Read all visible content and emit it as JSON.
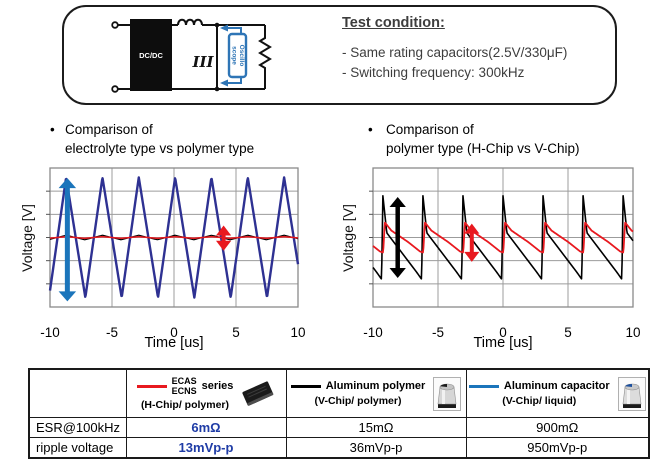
{
  "test_box": {
    "title": "Test condition:",
    "conditions": [
      "- Same rating capacitors(2.5V/330μF)",
      "- Switching frequency: 300kHz"
    ],
    "circuit": {
      "block_label": "DC/DC",
      "capacitor_marks": "III",
      "scope_label_line1": "Oscillo",
      "scope_label_line2": "scope"
    }
  },
  "chart_data": [
    {
      "type": "line",
      "bullet": "•",
      "title_line1": "Comparison of",
      "title_line2": "electrolyte type vs polymer type",
      "xlabel": "Time [us]",
      "ylabel": "Voltage [V]",
      "xlim": [
        -10,
        10
      ],
      "xticks": [
        -10,
        -5,
        0,
        5,
        10
      ],
      "ylim_mv": [
        -550,
        550
      ],
      "grid_rows": 6,
      "grid_on": true,
      "legend": "none (legend given in table below)",
      "series": [
        {
          "name": "Aluminum capacitor (V-Chip/ liquid)",
          "color": "#2e3192",
          "stroke_width": 2.4,
          "waveform": "triangle",
          "amplitude_mvpp": 950,
          "period_us": 2.93,
          "peak_at_us": -8.7,
          "shape_mv": [
            [
              0,
              475
            ],
            [
              1.55,
              -475
            ],
            [
              2.93,
              475
            ]
          ]
        },
        {
          "name": "Aluminum polymer (V-Chip/ polymer)",
          "color": "#000000",
          "stroke_width": 1.2,
          "waveform": "triangle",
          "amplitude_mvpp": 36,
          "period_us": 2.93,
          "peak_at_us": -8.7,
          "shape_mv": [
            [
              0,
              18
            ],
            [
              1.5,
              -18
            ],
            [
              2.93,
              18
            ]
          ]
        },
        {
          "name": "ECAS/ECNS series (H-Chip/ polymer)",
          "color": "#e8191f",
          "stroke_width": 1.5,
          "waveform": "triangle",
          "amplitude_mvpp": 13,
          "period_us": 2.93,
          "peak_at_us": -8.7,
          "shape_mv": [
            [
              0,
              6.5
            ],
            [
              1.5,
              -6.5
            ],
            [
              2.93,
              6.5
            ]
          ]
        }
      ],
      "annotations": [
        {
          "kind": "double-arrow-vertical",
          "color": "#1b75bb",
          "x_us": -8.6,
          "y1_mv": -505,
          "y2_mv": 470,
          "stroke_width": 5
        },
        {
          "kind": "double-arrow-vertical",
          "color": "#e8191f",
          "x_us": 4.0,
          "y1_mv": -105,
          "y2_mv": 95,
          "stroke_width": 4
        }
      ]
    },
    {
      "type": "line",
      "bullet": "•",
      "title_line1": "Comparison of",
      "title_line2": "polymer type (H-Chip vs V-Chip)",
      "xlabel": "Time [us]",
      "ylabel": "Voltage [V]",
      "xlim": [
        -10,
        10
      ],
      "xticks": [
        -10,
        -5,
        0,
        5,
        10
      ],
      "ylim_mv": [
        -30,
        30
      ],
      "grid_rows": 6,
      "grid_on": true,
      "legend": "none (legend given in table below)",
      "series": [
        {
          "name": "Aluminum polymer (V-Chip/ polymer)",
          "color": "#000000",
          "stroke_width": 1.6,
          "waveform": "sawtooth-spike",
          "amplitude_mvpp": 36,
          "period_us": 3.08,
          "peak_at_us": 0,
          "shape_mv": [
            [
              0,
              18
            ],
            [
              0.3,
              2
            ],
            [
              2.6,
              -15
            ],
            [
              2.98,
              -18
            ],
            [
              3.08,
              18
            ]
          ]
        },
        {
          "name": "ECAS/ECNS series (H-Chip/ polymer)",
          "color": "#e8191f",
          "stroke_width": 1.8,
          "waveform": "sawtooth-smooth",
          "amplitude_mvpp": 13,
          "period_us": 3.08,
          "peak_at_us": 0.15,
          "shape_mv": [
            [
              0,
              6.5
            ],
            [
              0.5,
              3
            ],
            [
              1.8,
              -2
            ],
            [
              2.7,
              -6
            ],
            [
              2.95,
              -6.5
            ],
            [
              3.08,
              6.5
            ]
          ]
        }
      ],
      "annotations": [
        {
          "kind": "double-arrow-vertical",
          "color": "#000000",
          "x_us": -8.1,
          "y1_mv": -17.5,
          "y2_mv": 17.5,
          "stroke_width": 4.5
        },
        {
          "kind": "double-arrow-vertical",
          "color": "#e8191f",
          "x_us": -2.4,
          "y1_mv": -10.5,
          "y2_mv": 6,
          "stroke_width": 4
        }
      ]
    }
  ],
  "table": {
    "columns": [
      {
        "line_color": "#e8191f",
        "name_line1": "ECAS",
        "name_line2": "ECNS",
        "series_word": "series",
        "subtitle": "(H-Chip/ polymer)",
        "icon": "ecas-chip"
      },
      {
        "line_color": "#000000",
        "title": "Aluminum polymer",
        "subtitle": "(V-Chip/ polymer)",
        "icon": "v-chip-polymer-capacitor"
      },
      {
        "line_color": "#1b75bb",
        "title": "Aluminum capacitor",
        "subtitle": "(V-Chip/ liquid)",
        "icon": "v-chip-liquid-capacitor"
      }
    ],
    "rows": [
      {
        "label": "ESR@100kHz",
        "values": [
          "6mΩ",
          "15mΩ",
          "900mΩ"
        ]
      },
      {
        "label": "ripple voltage",
        "values": [
          "13mVp-p",
          "36mVp-p",
          "950mVp-p"
        ]
      }
    ],
    "highlight_color": "#1f3ca6"
  }
}
